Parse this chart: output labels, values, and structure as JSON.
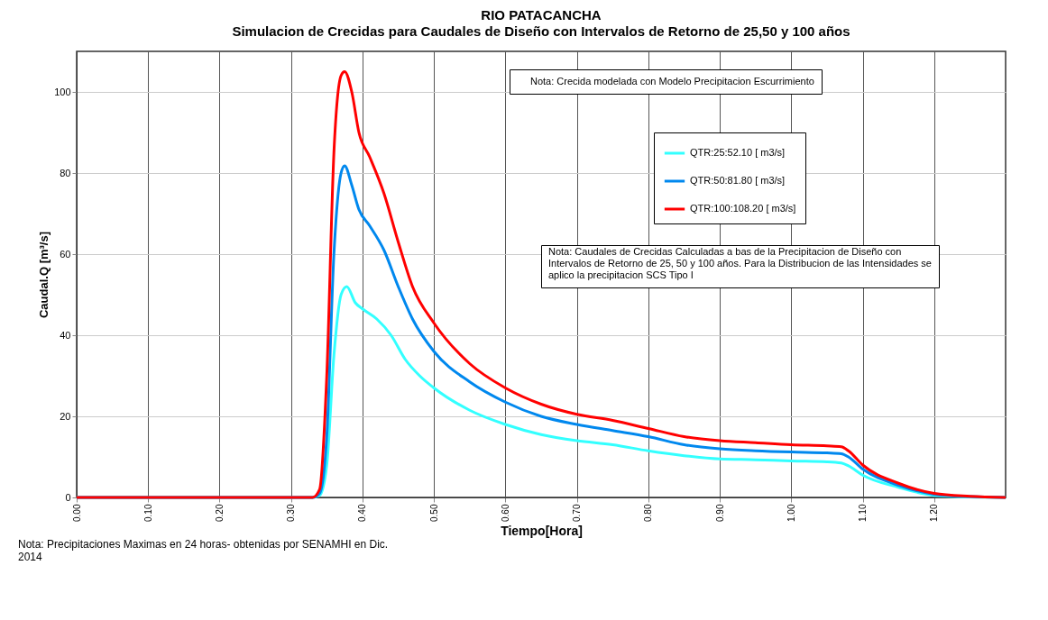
{
  "chart_data": {
    "type": "line",
    "title": "RIO PATACANCHA",
    "subtitle": "Simulacion de Crecidas para Caudales de Diseño con Intervalos de Retorno de 25,50 y  100 años",
    "xlabel": "Tiempo[Hora]",
    "ylabel": "Caudal.Q [m³/s]",
    "annotations": [
      "Nota: Crecida modelada con Modelo Precipitacion Escurrimiento",
      "Nota: Caudales  de Crecidas Calculadas a bas  de la Precipitacion de Diseño con\nIntervalos de Retorno de 25, 50 y 100 años. Para la Distribucion de las Intensidades se\naplico la precipitacion SCS Tipo I",
      "Nota: Precipitaciones Maximas en 24 horas- obtenidas por SENAMHI en Dic.\n2014"
    ],
    "series": [
      {
        "name": "QTR:25:52.10 [ m3/s]",
        "color": "#33ffff",
        "x": [
          0,
          0.33,
          0.34,
          0.35,
          0.36,
          0.37,
          0.378,
          0.39,
          0.4,
          0.42,
          0.44,
          0.46,
          0.48,
          0.5,
          0.55,
          0.6,
          0.65,
          0.7,
          0.75,
          0.8,
          0.85,
          0.9,
          0.95,
          1.0,
          1.05,
          1.07,
          1.08,
          1.1,
          1.15,
          1.2,
          1.25,
          1.3
        ],
        "values": [
          0,
          0,
          0.5,
          8,
          35,
          50,
          52,
          48,
          46.5,
          44,
          40,
          34,
          30,
          27,
          21.5,
          18,
          15.5,
          14,
          13,
          11.5,
          10.3,
          9.5,
          9.3,
          9,
          8.8,
          8.5,
          7.8,
          5.5,
          2.5,
          0.5,
          0.1,
          0
        ]
      },
      {
        "name": "QTR:50:81.80 [ m3/s]",
        "color": "#0088ee",
        "x": [
          0,
          0.33,
          0.34,
          0.35,
          0.36,
          0.37,
          0.375,
          0.385,
          0.395,
          0.41,
          0.43,
          0.45,
          0.47,
          0.5,
          0.55,
          0.6,
          0.65,
          0.7,
          0.75,
          0.8,
          0.85,
          0.9,
          0.95,
          1.0,
          1.05,
          1.07,
          1.08,
          1.1,
          1.15,
          1.2,
          1.25,
          1.3
        ],
        "values": [
          0,
          0,
          1,
          15,
          60,
          80,
          81.8,
          77,
          71,
          67,
          61,
          52,
          44,
          36,
          28.5,
          23.5,
          20,
          18,
          16.5,
          15,
          13,
          12,
          11.5,
          11.2,
          11,
          10.8,
          10,
          7,
          3,
          0.8,
          0.2,
          0
        ]
      },
      {
        "name": "QTR:100:108.20 [ m3/s]",
        "color": "#ff0000",
        "x": [
          0,
          0.33,
          0.34,
          0.35,
          0.36,
          0.37,
          0.375,
          0.385,
          0.395,
          0.41,
          0.43,
          0.45,
          0.47,
          0.5,
          0.55,
          0.6,
          0.65,
          0.7,
          0.75,
          0.8,
          0.85,
          0.9,
          0.95,
          1.0,
          1.05,
          1.07,
          1.08,
          1.1,
          1.15,
          1.2,
          1.25,
          1.3
        ],
        "values": [
          0,
          0,
          2,
          30,
          85,
          104,
          105,
          100,
          90,
          84,
          75,
          63,
          52,
          43,
          33,
          27,
          23,
          20.5,
          19,
          17,
          15,
          14,
          13.5,
          13,
          12.7,
          12.5,
          11.5,
          8,
          3.5,
          1,
          0.3,
          0
        ]
      }
    ],
    "xlim": [
      0,
      1.3
    ],
    "ylim": [
      0,
      110
    ],
    "xticks": [
      {
        "value": 0,
        "label": "0.00"
      },
      {
        "value": 0.1,
        "label": "0.10"
      },
      {
        "value": 0.2,
        "label": "0.20"
      },
      {
        "value": 0.3,
        "label": "0.30"
      },
      {
        "value": 0.4,
        "label": "0.40"
      },
      {
        "value": 0.5,
        "label": "0.50"
      },
      {
        "value": 0.6,
        "label": "0.60"
      },
      {
        "value": 0.7,
        "label": "0.70"
      },
      {
        "value": 0.8,
        "label": "0.80"
      },
      {
        "value": 0.9,
        "label": "0.90"
      },
      {
        "value": 1.0,
        "label": "1.00"
      },
      {
        "value": 1.1,
        "label": "1.10"
      },
      {
        "value": 1.2,
        "label": "1.20"
      }
    ],
    "yticks": [
      0,
      20,
      40,
      60,
      80,
      100
    ],
    "grid": true,
    "legend": "top right",
    "line_style": "solid",
    "marker": "none"
  }
}
